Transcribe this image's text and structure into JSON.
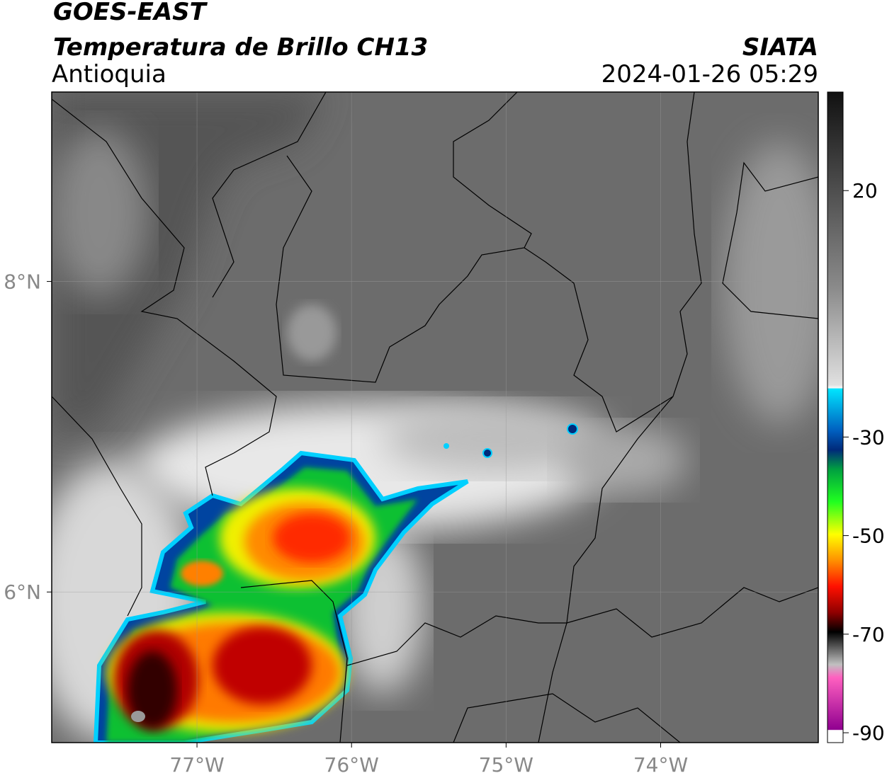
{
  "header": {
    "title": "GOES-EAST",
    "subtitle": "Temperatura de Brillo CH13",
    "region": "Antioquia",
    "source": "SIATA",
    "datetime": "2024-01-26 05:29"
  },
  "map": {
    "xlim": [
      -77.94,
      -72.98
    ],
    "ylim": [
      5.03,
      9.22
    ],
    "xticks": [
      {
        "value": -77,
        "label": "77°W"
      },
      {
        "value": -76,
        "label": "76°W"
      },
      {
        "value": -75,
        "label": "75°W"
      },
      {
        "value": -74,
        "label": "74°W"
      }
    ],
    "yticks": [
      {
        "value": 8,
        "label": "8°N"
      },
      {
        "value": 6,
        "label": "6°N"
      }
    ],
    "grid": true
  },
  "colorbar": {
    "lim": [
      -92,
      40
    ],
    "ticks": [
      20,
      -30,
      -50,
      -70,
      -90
    ]
  }
}
